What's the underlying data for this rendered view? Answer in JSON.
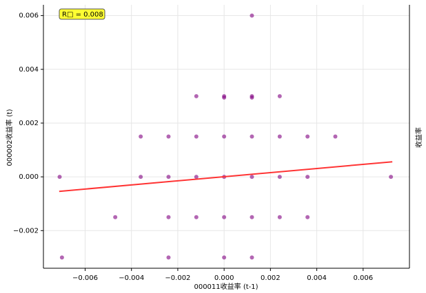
{
  "chart_data": {
    "type": "scatter",
    "xlabel": "000011收益率 (t-1)",
    "ylabel": "000002收益率 (t)",
    "right_label": "收益率",
    "annotation": "R□ = 0.008",
    "xlim": [
      -0.0078,
      0.008
    ],
    "ylim": [
      -0.0034,
      0.0064
    ],
    "xticks": [
      {
        "value": -0.006,
        "label": "−0.006"
      },
      {
        "value": -0.004,
        "label": "−0.004"
      },
      {
        "value": -0.002,
        "label": "−0.002"
      },
      {
        "value": 0,
        "label": "0.000"
      },
      {
        "value": 0.002,
        "label": "0.002"
      },
      {
        "value": 0.004,
        "label": "0.004"
      },
      {
        "value": 0.006,
        "label": "0.006"
      }
    ],
    "yticks": [
      {
        "value": -0.002,
        "label": "−0.002"
      },
      {
        "value": 0,
        "label": "0.000"
      },
      {
        "value": 0.002,
        "label": "0.002"
      },
      {
        "value": 0.004,
        "label": "0.004"
      },
      {
        "value": 0.006,
        "label": "0.006"
      }
    ],
    "grid": true,
    "series": [
      {
        "color": "#800080",
        "x": [
          0.0012,
          -0.0012,
          0,
          0,
          0.0012,
          0.0012,
          0.0024,
          -0.0036,
          -0.0024,
          -0.0012,
          0,
          0.0012,
          0.0024,
          0.0036,
          0.0048,
          -0.0071,
          -0.0036,
          -0.0024,
          -0.0012,
          0,
          0.0012,
          0.0024,
          0.0036,
          0.0072,
          -0.0047,
          -0.0024,
          -0.0012,
          0,
          0.0012,
          0.0024,
          0.0036,
          -0.007,
          -0.0024,
          0,
          0.0012
        ],
        "values": [
          0.006,
          0.003,
          0.003,
          0.00295,
          0.003,
          0.00295,
          0.003,
          0.0015,
          0.0015,
          0.0015,
          0.0015,
          0.0015,
          0.0015,
          0.0015,
          0.0015,
          0,
          0,
          0,
          0,
          0,
          0,
          0,
          0,
          0,
          -0.0015,
          -0.0015,
          -0.0015,
          -0.0015,
          -0.0015,
          -0.0015,
          -0.0015,
          -0.003,
          -0.003,
          -0.003,
          -0.003
        ]
      }
    ],
    "fit_line": {
      "color": "#ff3333",
      "x": [
        -0.00712,
        0.00726
      ],
      "values": [
        -0.00054,
        0.00056
      ]
    }
  }
}
